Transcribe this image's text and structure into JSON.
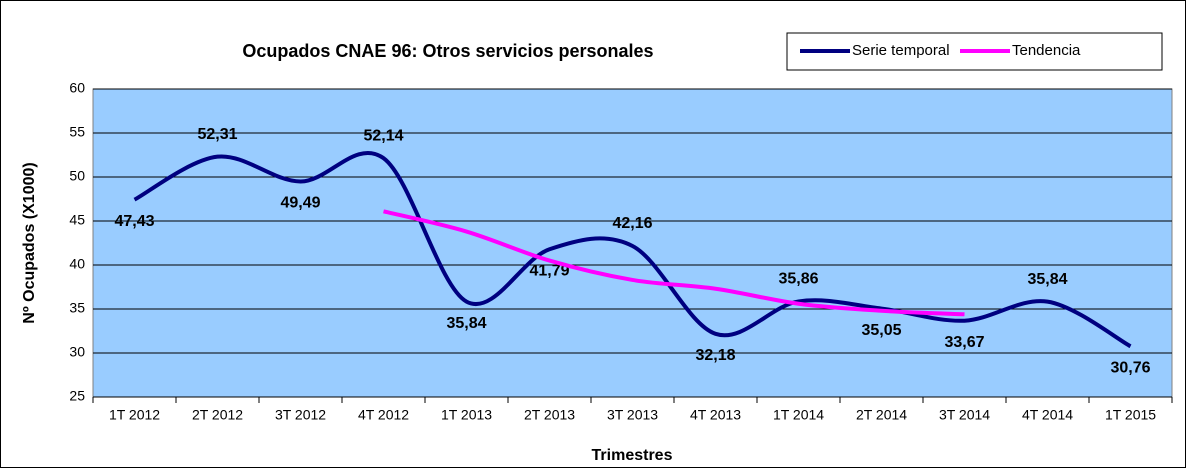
{
  "chart_data": {
    "type": "line",
    "title": "Ocupados CNAE 96: Otros servicios personales",
    "x_label": "Trimestres",
    "y_label": "Nº Ocupados (X1000)",
    "categories": [
      "1T 2012",
      "2T 2012",
      "3T 2012",
      "4T 2012",
      "1T 2013",
      "2T 2013",
      "3T 2013",
      "4T 2013",
      "1T 2014",
      "2T 2014",
      "3T 2014",
      "4T 2014",
      "1T 2015"
    ],
    "series": [
      {
        "name": "Serie temporal",
        "color": "#000080",
        "values": [
          47.43,
          52.31,
          49.49,
          52.14,
          35.84,
          41.79,
          42.16,
          32.18,
          35.86,
          35.05,
          33.67,
          35.84,
          30.76
        ],
        "value_labels": [
          "47,43",
          "52,31",
          "49,49",
          "52,14",
          "35,84",
          "41,79",
          "42,16",
          "32,18",
          "35,86",
          "35,05",
          "33,67",
          "35,84",
          "30,76"
        ]
      },
      {
        "name": "Tendencia",
        "color": "#ff00ff",
        "values": [
          null,
          null,
          null,
          46.1,
          43.8,
          40.5,
          38.3,
          37.3,
          35.6,
          34.8,
          34.4,
          null,
          null
        ]
      }
    ],
    "ylim": [
      25,
      60
    ],
    "yticks": [
      25,
      30,
      35,
      40,
      45,
      50,
      55,
      60
    ],
    "grid": true,
    "plot_color": "#99ccff",
    "legend": "top-right"
  }
}
